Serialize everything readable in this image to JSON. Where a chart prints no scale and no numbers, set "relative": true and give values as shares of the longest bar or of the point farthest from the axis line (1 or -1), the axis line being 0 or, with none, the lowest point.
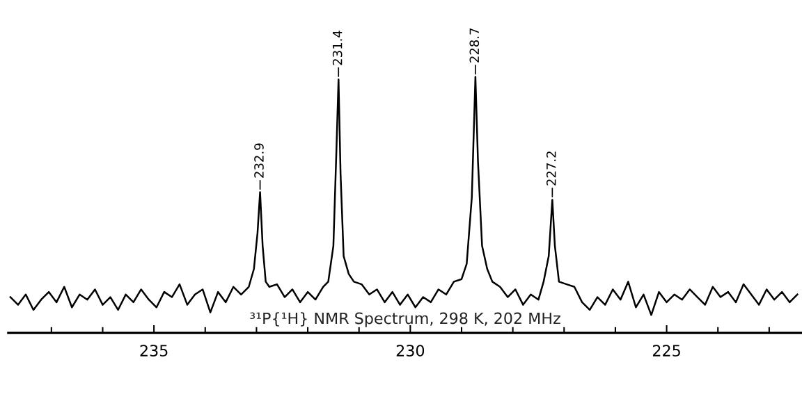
{
  "chart_data": {
    "type": "line",
    "relative": true,
    "color": "#000000",
    "x": [
      237.8,
      237.65,
      237.5,
      237.35,
      237.2,
      237.05,
      236.9,
      236.75,
      236.6,
      236.45,
      236.3,
      236.15,
      236.0,
      235.85,
      235.7,
      235.55,
      235.4,
      235.25,
      235.1,
      234.95,
      234.8,
      234.65,
      234.5,
      234.35,
      234.2,
      234.05,
      233.9,
      233.75,
      233.6,
      233.45,
      233.3,
      233.15,
      233.05,
      232.98,
      232.93,
      232.88,
      232.82,
      232.75,
      232.6,
      232.45,
      232.3,
      232.15,
      232.0,
      231.85,
      231.7,
      231.6,
      231.5,
      231.44,
      231.4,
      231.36,
      231.3,
      231.2,
      231.1,
      230.95,
      230.8,
      230.65,
      230.5,
      230.35,
      230.2,
      230.05,
      229.9,
      229.75,
      229.6,
      229.45,
      229.3,
      229.15,
      229.0,
      228.9,
      228.8,
      228.73,
      228.68,
      228.6,
      228.5,
      228.4,
      228.25,
      228.1,
      227.95,
      227.8,
      227.65,
      227.5,
      227.4,
      227.3,
      227.23,
      227.18,
      227.1,
      226.95,
      226.8,
      226.65,
      226.5,
      226.35,
      226.2,
      226.05,
      225.9,
      225.75,
      225.6,
      225.45,
      225.3,
      225.15,
      225.0,
      224.85,
      224.7,
      224.55,
      224.4,
      224.25,
      224.1,
      223.95,
      223.8,
      223.65,
      223.5,
      223.35,
      223.2,
      223.05,
      222.9,
      222.75,
      222.6,
      222.45
    ],
    "values": [
      0.14,
      0.11,
      0.15,
      0.09,
      0.13,
      0.16,
      0.12,
      0.18,
      0.1,
      0.15,
      0.13,
      0.17,
      0.11,
      0.14,
      0.09,
      0.15,
      0.12,
      0.17,
      0.13,
      0.1,
      0.16,
      0.14,
      0.19,
      0.11,
      0.15,
      0.17,
      0.08,
      0.16,
      0.12,
      0.18,
      0.15,
      0.18,
      0.25,
      0.39,
      0.55,
      0.34,
      0.2,
      0.18,
      0.19,
      0.14,
      0.17,
      0.12,
      0.16,
      0.13,
      0.18,
      0.2,
      0.34,
      0.72,
      0.99,
      0.62,
      0.3,
      0.23,
      0.2,
      0.19,
      0.15,
      0.17,
      0.12,
      0.16,
      0.11,
      0.15,
      0.1,
      0.14,
      0.12,
      0.17,
      0.15,
      0.2,
      0.21,
      0.27,
      0.53,
      1.0,
      0.67,
      0.34,
      0.25,
      0.2,
      0.18,
      0.14,
      0.17,
      0.11,
      0.15,
      0.13,
      0.2,
      0.3,
      0.52,
      0.34,
      0.2,
      0.19,
      0.18,
      0.12,
      0.09,
      0.14,
      0.11,
      0.17,
      0.13,
      0.2,
      0.1,
      0.15,
      0.07,
      0.16,
      0.12,
      0.15,
      0.13,
      0.17,
      0.14,
      0.11,
      0.18,
      0.14,
      0.16,
      0.12,
      0.19,
      0.15,
      0.11,
      0.17,
      0.13,
      0.16,
      0.12,
      0.15
    ],
    "xlim": [
      237.84,
      222.36
    ],
    "xticks": [
      {
        "value": 237,
        "label": null
      },
      {
        "value": 236,
        "label": null
      },
      235,
      {
        "value": 234,
        "label": null
      },
      {
        "value": 233,
        "label": null
      },
      {
        "value": 232,
        "label": null
      },
      {
        "value": 231,
        "label": null
      },
      230,
      {
        "value": 229,
        "label": null
      },
      {
        "value": 228,
        "label": null
      },
      {
        "value": 227,
        "label": null
      },
      {
        "value": 226,
        "label": null
      },
      225,
      {
        "value": 224,
        "label": null
      },
      {
        "value": 223,
        "label": null
      }
    ],
    "grid": false,
    "legend": false,
    "annotations": [
      {
        "text": "232.9",
        "x": 232.93,
        "y": 0.55
      },
      {
        "text": "231.4",
        "x": 231.4,
        "y": 0.99
      },
      {
        "text": "228.7",
        "x": 228.73,
        "y": 1.0
      },
      {
        "text": "227.2",
        "x": 227.23,
        "y": 0.52
      },
      "³¹P{¹H} NMR Spectrum, 298 K, 202 MHz"
    ]
  }
}
